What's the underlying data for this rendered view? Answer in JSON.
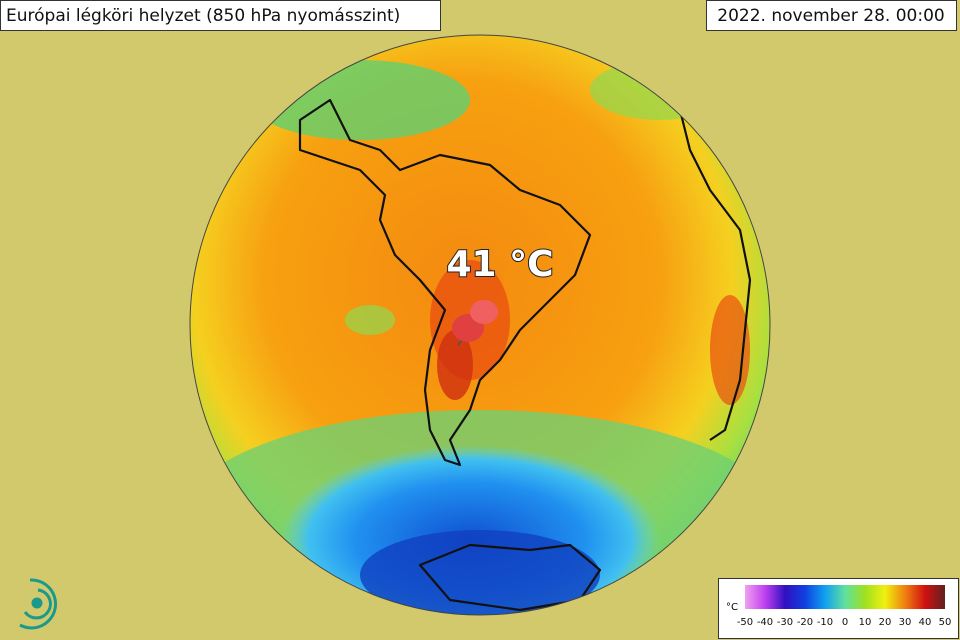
{
  "header": {
    "title": "Európai légköri helyzet (850 hPa nyomásszint)",
    "date": "2022. november 28. 00:00"
  },
  "annotation": {
    "label": "41 °C"
  },
  "legend": {
    "unit": "°C",
    "ticks": [
      -50,
      -40,
      -30,
      -20,
      -10,
      0,
      10,
      20,
      30,
      40,
      50
    ],
    "colors": [
      "#f0a0f0",
      "#c040f0",
      "#3010c0",
      "#1040e0",
      "#10a0f0",
      "#60e0a0",
      "#a0e020",
      "#f0f010",
      "#f08010",
      "#d01010",
      "#602020"
    ]
  }
}
